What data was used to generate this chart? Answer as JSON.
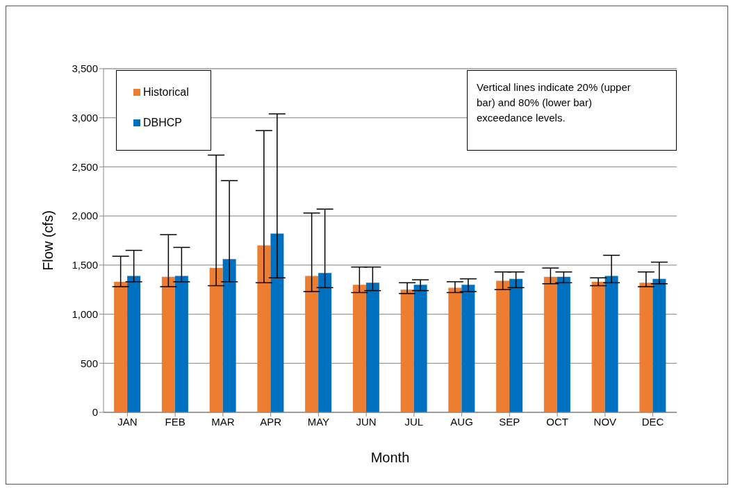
{
  "chart_data": {
    "type": "bar",
    "xlabel": "Month",
    "ylabel": "Flow (cfs)",
    "categories": [
      "JAN",
      "FEB",
      "MAR",
      "APR",
      "MAY",
      "JUN",
      "JUL",
      "AUG",
      "SEP",
      "OCT",
      "NOV",
      "DEC"
    ],
    "series": [
      {
        "name": "Historical",
        "color": "#ed7d31",
        "values": [
          1330,
          1380,
          1470,
          1700,
          1390,
          1300,
          1250,
          1270,
          1340,
          1380,
          1330,
          1320
        ],
        "errors": [
          [
            1280,
            1590
          ],
          [
            1280,
            1810
          ],
          [
            1290,
            2620
          ],
          [
            1320,
            2870
          ],
          [
            1230,
            2030
          ],
          [
            1220,
            1480
          ],
          [
            1210,
            1320
          ],
          [
            1220,
            1330
          ],
          [
            1250,
            1430
          ],
          [
            1310,
            1470
          ],
          [
            1290,
            1370
          ],
          [
            1280,
            1430
          ]
        ]
      },
      {
        "name": "DBHCP",
        "color": "#0070c0",
        "values": [
          1390,
          1390,
          1560,
          1820,
          1420,
          1320,
          1300,
          1300,
          1360,
          1380,
          1390,
          1360
        ],
        "errors": [
          [
            1330,
            1650
          ],
          [
            1330,
            1680
          ],
          [
            1330,
            2360
          ],
          [
            1370,
            3040
          ],
          [
            1270,
            2070
          ],
          [
            1240,
            1480
          ],
          [
            1240,
            1350
          ],
          [
            1230,
            1360
          ],
          [
            1270,
            1430
          ],
          [
            1320,
            1430
          ],
          [
            1320,
            1600
          ],
          [
            1310,
            1530
          ]
        ]
      }
    ],
    "ylim": [
      0,
      3500
    ],
    "yticks": [
      {
        "value": 0,
        "label": "0"
      },
      {
        "value": 500,
        "label": "500"
      },
      {
        "value": 1000,
        "label": "1,000"
      },
      {
        "value": 1500,
        "label": "1,500"
      },
      {
        "value": 2000,
        "label": "2,000"
      },
      {
        "value": 2500,
        "label": "2,500"
      },
      {
        "value": 3000,
        "label": "3,000"
      },
      {
        "value": 3500,
        "label": "3,500"
      }
    ],
    "grid": "y",
    "legend": "top left",
    "annotations": [
      "Vertical lines indicate 20% (upper bar) and 80% (lower bar) exceedance levels."
    ]
  }
}
